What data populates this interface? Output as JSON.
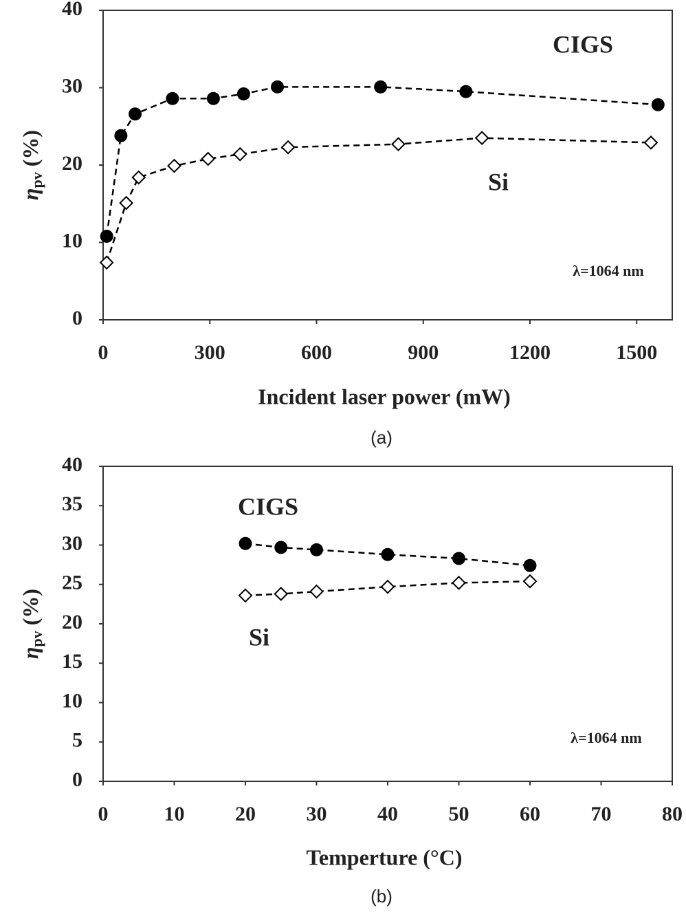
{
  "chart_data": [
    {
      "type": "scatter",
      "caption": "(a)",
      "x_label": "Incident laser power (mW)",
      "y_label": "η",
      "y_label_sub": "pv",
      "y_label_unit": "(%)",
      "annotation": "λ=1064 nm",
      "xlim": [
        0,
        1600
      ],
      "ylim": [
        0,
        40
      ],
      "xticks": [
        0,
        300,
        600,
        900,
        1200,
        1500
      ],
      "yticks": [
        0,
        10,
        20,
        30,
        40
      ],
      "series": [
        {
          "name": "CIGS",
          "color": "#000000",
          "marker": "circle",
          "x": [
            10,
            50,
            90,
            195,
            310,
            395,
            490,
            780,
            1020,
            1560
          ],
          "values": [
            10.8,
            23.8,
            26.6,
            28.6,
            28.6,
            29.2,
            30.1,
            30.1,
            29.5,
            27.8
          ]
        },
        {
          "name": "Si",
          "color": "#000000",
          "marker": "diamond",
          "x": [
            10,
            65,
            100,
            200,
            295,
            385,
            520,
            830,
            1065,
            1540
          ],
          "values": [
            7.4,
            15.1,
            18.4,
            19.9,
            20.8,
            21.4,
            22.3,
            22.7,
            23.5,
            22.9
          ]
        }
      ]
    },
    {
      "type": "scatter",
      "caption": "(b)",
      "x_label": "Temperture (°C)",
      "y_label": "η",
      "y_label_sub": "pv",
      "y_label_unit": "(%)",
      "annotation": "λ=1064 nm",
      "xlim": [
        0,
        80
      ],
      "ylim": [
        0,
        40
      ],
      "xticks": [
        0,
        10,
        20,
        30,
        40,
        50,
        60,
        70,
        80
      ],
      "yticks": [
        0,
        5,
        10,
        15,
        20,
        25,
        30,
        35,
        40
      ],
      "series": [
        {
          "name": "CIGS",
          "color": "#000000",
          "marker": "circle",
          "x": [
            20,
            25,
            30,
            40,
            50,
            60
          ],
          "values": [
            30.2,
            29.7,
            29.4,
            28.8,
            28.3,
            27.4
          ]
        },
        {
          "name": "Si",
          "color": "#000000",
          "marker": "diamond",
          "x": [
            20,
            25,
            30,
            40,
            50,
            60
          ],
          "values": [
            23.6,
            23.8,
            24.1,
            24.7,
            25.2,
            25.4
          ]
        }
      ]
    }
  ]
}
